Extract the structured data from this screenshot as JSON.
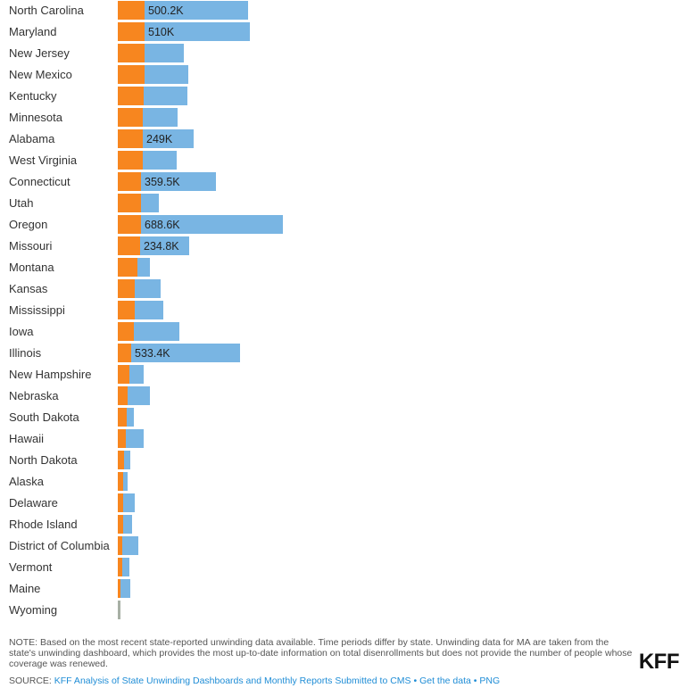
{
  "colors": {
    "disenrolled": "#f7861f",
    "renewed": "#79b5e3",
    "zero": "#a8b0a5"
  },
  "chart_data": {
    "type": "bar",
    "orientation": "horizontal",
    "stacked": true,
    "series_keys": [
      "disenrolled",
      "renewed"
    ],
    "label_unit_per_px": 3440,
    "rows": [
      {
        "state": "North Carolina",
        "disenrolled": 30,
        "renewed": 116,
        "label": "500.2K"
      },
      {
        "state": "Maryland",
        "disenrolled": 30,
        "renewed": 118,
        "label": "510K"
      },
      {
        "state": "New Jersey",
        "disenrolled": 30,
        "renewed": 44,
        "label": ""
      },
      {
        "state": "New Mexico",
        "disenrolled": 30,
        "renewed": 49,
        "label": ""
      },
      {
        "state": "Kentucky",
        "disenrolled": 29,
        "renewed": 49,
        "label": ""
      },
      {
        "state": "Minnesota",
        "disenrolled": 28,
        "renewed": 39,
        "label": ""
      },
      {
        "state": "Alabama",
        "disenrolled": 28,
        "renewed": 57,
        "label": "249K"
      },
      {
        "state": "West Virginia",
        "disenrolled": 28,
        "renewed": 38,
        "label": ""
      },
      {
        "state": "Connecticut",
        "disenrolled": 26,
        "renewed": 84,
        "label": "359.5K"
      },
      {
        "state": "Utah",
        "disenrolled": 26,
        "renewed": 20,
        "label": ""
      },
      {
        "state": "Oregon",
        "disenrolled": 26,
        "renewed": 159,
        "label": "688.6K"
      },
      {
        "state": "Missouri",
        "disenrolled": 25,
        "renewed": 55,
        "label": "234.8K"
      },
      {
        "state": "Montana",
        "disenrolled": 22,
        "renewed": 14,
        "label": ""
      },
      {
        "state": "Kansas",
        "disenrolled": 19,
        "renewed": 29,
        "label": ""
      },
      {
        "state": "Mississippi",
        "disenrolled": 19,
        "renewed": 32,
        "label": ""
      },
      {
        "state": "Iowa",
        "disenrolled": 18,
        "renewed": 51,
        "label": ""
      },
      {
        "state": "Illinois",
        "disenrolled": 15,
        "renewed": 122,
        "label": "533.4K"
      },
      {
        "state": "New Hampshire",
        "disenrolled": 13,
        "renewed": 16,
        "label": ""
      },
      {
        "state": "Nebraska",
        "disenrolled": 11,
        "renewed": 25,
        "label": ""
      },
      {
        "state": "South Dakota",
        "disenrolled": 10,
        "renewed": 8,
        "label": ""
      },
      {
        "state": "Hawaii",
        "disenrolled": 9,
        "renewed": 20,
        "label": ""
      },
      {
        "state": "North Dakota",
        "disenrolled": 7,
        "renewed": 7,
        "label": ""
      },
      {
        "state": "Alaska",
        "disenrolled": 6,
        "renewed": 5,
        "label": ""
      },
      {
        "state": "Delaware",
        "disenrolled": 6,
        "renewed": 13,
        "label": ""
      },
      {
        "state": "Rhode Island",
        "disenrolled": 6,
        "renewed": 10,
        "label": ""
      },
      {
        "state": "District of Columbia",
        "disenrolled": 5,
        "renewed": 18,
        "label": ""
      },
      {
        "state": "Vermont",
        "disenrolled": 5,
        "renewed": 8,
        "label": ""
      },
      {
        "state": "Maine",
        "disenrolled": 3,
        "renewed": 11,
        "label": ""
      },
      {
        "state": "Wyoming",
        "disenrolled": 0,
        "renewed": 3,
        "label": ""
      }
    ]
  },
  "footer": {
    "note": "NOTE: Based on the most recent state-reported unwinding data available. Time periods differ by state. Unwinding data for MA are taken from the state's unwinding dashboard, which provides the most up-to-date information on total disenrollments but does not provide the number of people whose coverage was renewed.",
    "source_prefix": "SOURCE:",
    "source_link": "KFF Analysis of State Unwinding Dashboards and Monthly Reports Submitted to CMS",
    "separator": "•",
    "get_data_link": "Get the data",
    "png_link": "PNG",
    "logo": "KFF"
  }
}
